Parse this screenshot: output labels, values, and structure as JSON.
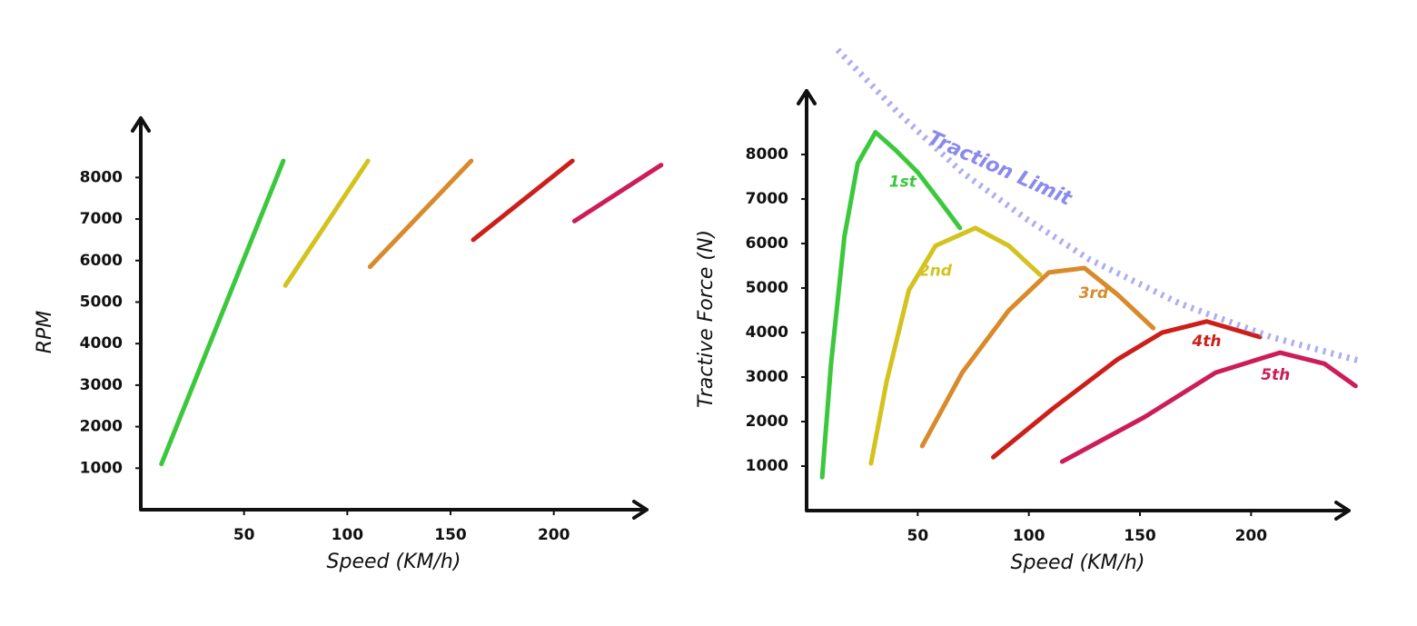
{
  "chart_data": [
    {
      "type": "line",
      "xlabel": "Speed (KM/h)",
      "ylabel": "RPM",
      "xlim": [
        0,
        245
      ],
      "ylim": [
        0,
        9430
      ],
      "xticks": [
        50,
        100,
        150,
        200
      ],
      "yticks": [
        1000,
        2000,
        3000,
        4000,
        5000,
        6000,
        7000,
        8000
      ],
      "series": [
        {
          "color": "#3cc83c",
          "x": [
            10,
            69
          ],
          "values": [
            1100,
            8400
          ]
        },
        {
          "color": "#d4c21e",
          "x": [
            70,
            110
          ],
          "values": [
            5400,
            8400
          ]
        },
        {
          "color": "#d98a2a",
          "x": [
            111,
            160
          ],
          "values": [
            5850,
            8400
          ]
        },
        {
          "color": "#cc1f1a",
          "x": [
            161,
            209
          ],
          "values": [
            6500,
            8400
          ]
        },
        {
          "color": "#cc1d5a",
          "x": [
            210,
            252
          ],
          "values": [
            6950,
            8300
          ]
        }
      ]
    },
    {
      "type": "line",
      "xlabel": "Speed (KM/h)",
      "ylabel": "Tractive Force (N)",
      "xlim": [
        0,
        244
      ],
      "ylim": [
        0,
        9430
      ],
      "xticks": [
        50,
        100,
        150,
        200
      ],
      "yticks": [
        1000,
        2000,
        3000,
        4000,
        5000,
        6000,
        7000,
        8000
      ],
      "series": [
        {
          "name": "1st",
          "color": "#3cc83c",
          "x": [
            7,
            11,
            17,
            23,
            31,
            40,
            50,
            60,
            69
          ],
          "values": [
            750,
            3300,
            6150,
            7800,
            8500,
            8100,
            7600,
            6950,
            6350
          ]
        },
        {
          "name": "2nd",
          "color": "#d4c21e",
          "x": [
            29,
            36,
            46,
            58,
            76,
            91,
            105
          ],
          "values": [
            1060,
            2900,
            4950,
            5950,
            6350,
            5950,
            5300
          ]
        },
        {
          "name": "3rd",
          "color": "#d98a2a",
          "x": [
            52,
            70,
            91,
            109,
            125,
            140,
            156
          ],
          "values": [
            1450,
            3100,
            4500,
            5350,
            5450,
            4850,
            4100
          ]
        },
        {
          "name": "4th",
          "color": "#cc1f1a",
          "x": [
            84,
            111,
            140,
            160,
            180,
            204
          ],
          "values": [
            1200,
            2300,
            3400,
            4000,
            4250,
            3900
          ]
        },
        {
          "name": "5th",
          "color": "#cc1d5a",
          "x": [
            115,
            152,
            184,
            213,
            233,
            247
          ],
          "values": [
            1100,
            2100,
            3100,
            3550,
            3300,
            2800
          ]
        },
        {
          "name": "Traction Limit",
          "color": "#8a8aee",
          "dashed": true,
          "x": [
            14,
            42,
            70,
            99,
            127,
            168,
            209,
            250
          ],
          "values": [
            10350,
            8900,
            7600,
            6550,
            5650,
            4650,
            3900,
            3350
          ]
        }
      ]
    }
  ]
}
